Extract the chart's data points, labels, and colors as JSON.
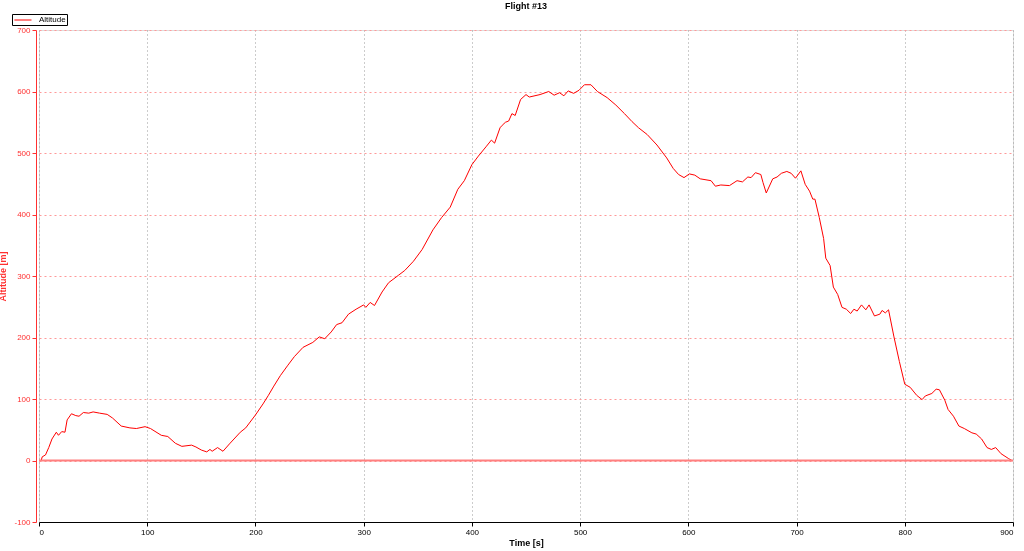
{
  "chart_data": {
    "type": "line",
    "title": "Flight #13",
    "xlabel": "Time [s]",
    "ylabel": "Altitude [m]",
    "x": [
      2,
      3,
      6,
      9,
      12,
      16,
      18,
      21,
      24,
      26,
      30,
      34,
      37,
      41,
      46,
      50,
      56,
      63,
      68,
      76,
      84,
      90,
      98,
      103,
      113,
      119,
      126,
      132,
      141,
      145,
      150,
      155,
      158,
      160,
      165,
      170,
      176,
      186,
      191,
      200,
      207,
      212,
      217,
      223,
      230,
      236,
      244,
      253,
      259,
      264,
      270,
      275,
      280,
      286,
      293,
      300,
      302,
      306,
      310,
      317,
      323,
      332,
      338,
      346,
      354,
      364,
      372,
      380,
      387,
      393,
      400,
      406,
      413,
      418,
      421,
      426,
      428,
      431,
      434,
      437,
      440,
      445,
      450,
      453,
      463,
      471,
      476,
      481,
      485,
      489,
      494,
      499,
      504,
      510,
      516,
      525,
      533,
      541,
      548,
      554,
      562,
      571,
      580,
      586,
      591,
      596,
      601,
      606,
      611,
      621,
      625,
      630,
      638,
      645,
      650,
      655,
      658,
      662,
      667,
      669,
      672,
      678,
      682,
      686,
      691,
      695,
      699,
      704,
      708,
      712,
      715,
      717,
      721,
      725,
      727,
      731,
      734,
      738,
      742,
      746,
      750,
      753,
      756,
      760,
      764,
      767,
      772,
      777,
      779,
      782,
      785,
      790,
      795,
      800,
      805,
      811,
      816,
      819,
      825,
      829,
      832,
      837,
      840,
      845,
      850,
      855,
      862,
      866,
      871,
      876,
      880,
      884,
      889,
      896,
      899
    ],
    "series": [
      {
        "name": "Altitude",
        "color": "#ff0000",
        "values": [
          0,
          6,
          9,
          21,
          35,
          46,
          41,
          47,
          46,
          66,
          76,
          73,
          72,
          78,
          77,
          79,
          77,
          75,
          69,
          56,
          53,
          52,
          55,
          52,
          41,
          39,
          28,
          23,
          25,
          22,
          17,
          14,
          18,
          15,
          21,
          15,
          27,
          46,
          53,
          74,
          92,
          106,
          121,
          138,
          155,
          169,
          184,
          192,
          201,
          198,
          209,
          221,
          224,
          238,
          246,
          253,
          249,
          257,
          252,
          274,
          289,
          301,
          309,
          324,
          343,
          375,
          395,
          412,
          441,
          455,
          481,
          495,
          510,
          521,
          516,
          541,
          545,
          550,
          552,
          564,
          561,
          587,
          595,
          591,
          595,
          600,
          594,
          598,
          593,
          601,
          597,
          602,
          611,
          611,
          600,
          590,
          578,
          564,
          551,
          541,
          530,
          513,
          492,
          475,
          465,
          460,
          466,
          464,
          458,
          455,
          446,
          448,
          447,
          455,
          453,
          461,
          460,
          468,
          465,
          452,
          435,
          458,
          461,
          467,
          470,
          467,
          459,
          471,
          449,
          438,
          425,
          425,
          395,
          361,
          329,
          317,
          282,
          270,
          249,
          246,
          239,
          246,
          243,
          253,
          245,
          253,
          235,
          238,
          244,
          240,
          245,
          201,
          161,
          124,
          119,
          106,
          99,
          105,
          109,
          116,
          115,
          98,
          83,
          72,
          56,
          52,
          45,
          43,
          35,
          21,
          18,
          21,
          11,
          3,
          0
        ]
      }
    ],
    "xlim": [
      0,
      900
    ],
    "xticks": [
      0,
      100,
      200,
      300,
      400,
      500,
      600,
      700,
      800,
      900
    ],
    "ylim": [
      -100,
      700
    ],
    "yticks": [
      -100,
      0,
      100,
      200,
      300,
      400,
      500,
      600,
      700
    ],
    "ref_lines": [
      {
        "axis": "y",
        "value": 0,
        "color": "#ff8080"
      }
    ],
    "grid": true,
    "legend": "top left",
    "marker": "none",
    "line_style": "solid"
  }
}
